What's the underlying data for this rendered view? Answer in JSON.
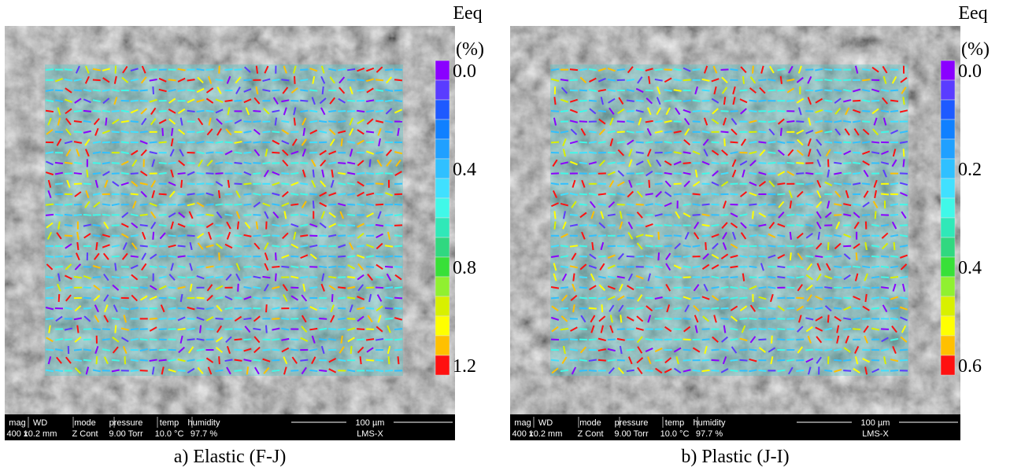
{
  "panels": [
    {
      "caption": "a) Elastic (F-J)",
      "colorbar": {
        "title": "Eeq",
        "unit": "(%)",
        "ticks": [
          "0.0",
          "0.4",
          "0.8",
          "1.2"
        ]
      },
      "info": {
        "labels": [
          "mag",
          "WD",
          "mode",
          "pressure",
          "temp",
          "humidity"
        ],
        "values": [
          "400 x",
          "10.2 mm",
          "Z Cont",
          "9.00 Torr",
          "10.0 °C",
          "97.7 %"
        ],
        "scale": "100 µm",
        "instrument": "LMS-X"
      }
    },
    {
      "caption": "b) Plastic (J-I)",
      "colorbar": {
        "title": "Eeq",
        "unit": "(%)",
        "ticks": [
          "0.0",
          "0.2",
          "0.4",
          "0.6"
        ]
      },
      "info": {
        "labels": [
          "mag",
          "WD",
          "mode",
          "pressure",
          "temp",
          "humidity"
        ],
        "values": [
          "400 x",
          "10.2 mm",
          "Z Cont",
          "9.00 Torr",
          "10.0 °C",
          "97.7 %"
        ],
        "scale": "100 µm",
        "instrument": "LMS-X"
      }
    }
  ]
}
